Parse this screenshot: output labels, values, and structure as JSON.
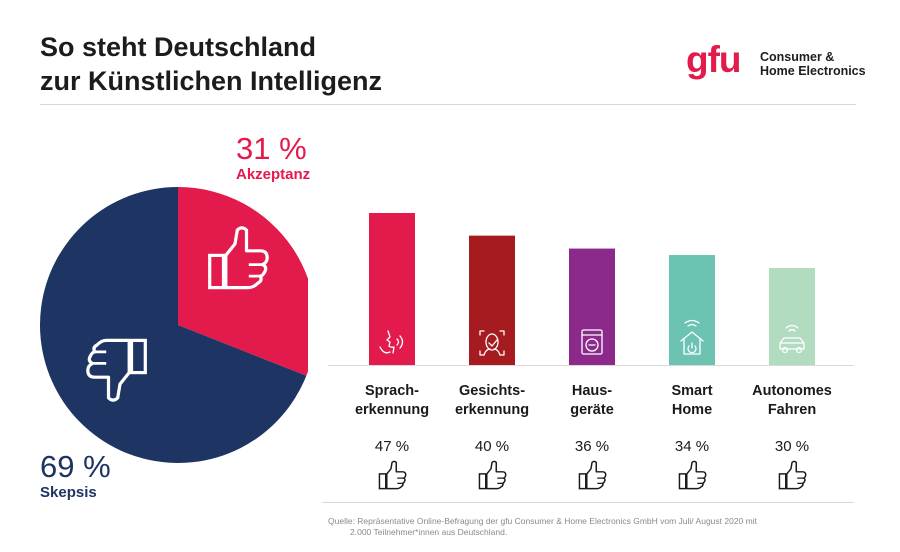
{
  "title": {
    "line1": "So steht Deutschland",
    "line2": "zur Künstlichen Intelligenz"
  },
  "logo": {
    "mark": "gfu",
    "line1": "Consumer &",
    "line2": "Home Electronics"
  },
  "source": {
    "line1": "Quelle: Repräsentative Online-Befragung der gfu Consumer & Home Electronics GmbH vom Juli/ August 2020 mit",
    "line2": "2.000 Teilnehmer*innen aus Deutschland."
  },
  "chart_data": [
    {
      "type": "pie",
      "slices": [
        {
          "label": "Akzeptanz",
          "value": 31,
          "value_label": "31 %",
          "color": "#e31a4c",
          "icon": "thumbs-up-icon"
        },
        {
          "label": "Skepsis",
          "value": 69,
          "value_label": "69 %",
          "color": "#1e3564",
          "icon": "thumbs-down-icon"
        }
      ]
    },
    {
      "type": "bar",
      "categories": [
        {
          "line1": "Sprach-",
          "line2": "erkennung"
        },
        {
          "line1": "Gesichts-",
          "line2": "erkennung"
        },
        {
          "line1": "Haus-",
          "line2": "geräte"
        },
        {
          "line1": "Smart",
          "line2": "Home"
        },
        {
          "line1": "Autonomes",
          "line2": "Fahren"
        }
      ],
      "values": [
        47,
        40,
        36,
        34,
        30
      ],
      "value_labels": [
        "47 %",
        "40 %",
        "36 %",
        "34 %",
        "30 %"
      ],
      "colors": [
        "#e31a4c",
        "#a51b1f",
        "#8c2a8c",
        "#6cc3b1",
        "#b2dcc0"
      ],
      "icons": [
        "speech-recognition-icon",
        "face-recognition-icon",
        "washing-machine-icon",
        "smart-home-icon",
        "autonomous-car-icon"
      ],
      "ylim": [
        0,
        47
      ]
    }
  ]
}
